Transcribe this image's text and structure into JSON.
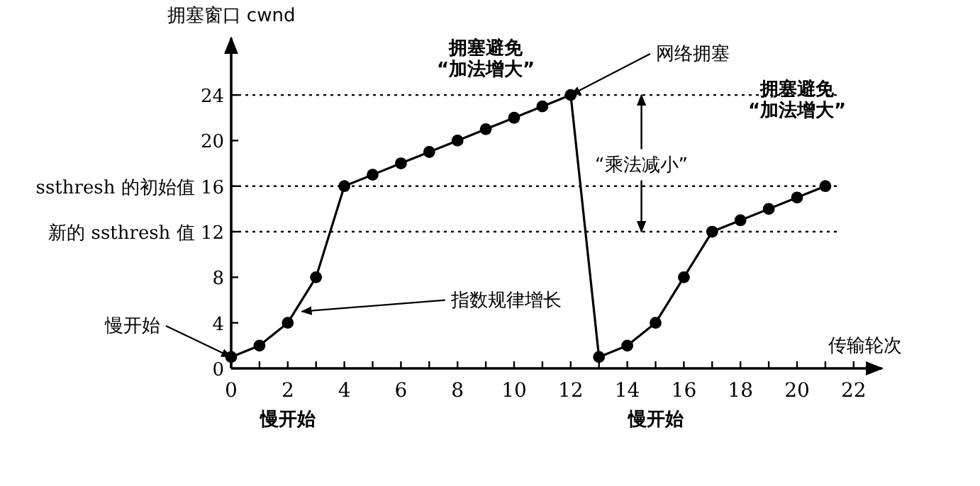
{
  "chart_data": {
    "type": "line",
    "xlabel": "传输轮次",
    "ylabel": "拥塞窗口 cwnd",
    "x": [
      0,
      1,
      2,
      3,
      4,
      5,
      6,
      7,
      8,
      9,
      10,
      11,
      12,
      13,
      14,
      15,
      16,
      17,
      18,
      19,
      20,
      21
    ],
    "series": [
      {
        "color": "#000000",
        "values": [
          1,
          2,
          4,
          8,
          16,
          17,
          18,
          19,
          20,
          21,
          22,
          23,
          24,
          1,
          2,
          4,
          8,
          12,
          13,
          14,
          15,
          16
        ]
      }
    ],
    "marker": "circle",
    "line_style": "solid",
    "grid": false,
    "legend": false,
    "xlim": [
      0,
      23
    ],
    "ylim": [
      0,
      29
    ],
    "xticks": [
      0,
      {
        "value": 1,
        "label": null
      },
      2,
      {
        "value": 3,
        "label": null
      },
      4,
      {
        "value": 5,
        "label": null
      },
      6,
      {
        "value": 7,
        "label": null
      },
      8,
      {
        "value": 9,
        "label": null
      },
      10,
      {
        "value": 11,
        "label": null
      },
      12,
      {
        "value": 13,
        "label": null
      },
      14,
      {
        "value": 15,
        "label": null
      },
      16,
      {
        "value": 17,
        "label": null
      },
      18,
      {
        "value": 19,
        "label": null
      },
      20,
      {
        "value": 21,
        "label": null
      },
      22
    ],
    "yticks": [
      0,
      4,
      8,
      {
        "value": 12,
        "label": "新的 ssthresh 值 12"
      },
      {
        "value": 16,
        "label": "ssthresh 的初始值 16"
      },
      20,
      24
    ],
    "ref_lines": [
      {
        "axis": "y",
        "value": 24,
        "line_style": "dotted"
      },
      {
        "axis": "y",
        "value": 16,
        "line_style": "dotted"
      },
      {
        "axis": "y",
        "value": 12,
        "line_style": "dotted"
      }
    ],
    "annotations": [
      {
        "text": "慢开始",
        "x": 0,
        "y": 1
      },
      {
        "text": "指数规律增长",
        "x": 2.5,
        "y": 5
      },
      {
        "text": "网络拥塞",
        "x": 12,
        "y": 24
      },
      "拥塞避免\n“加法增大”",
      {
        "text": "“乘法减小”",
        "x": 14.5,
        "y": 24
      },
      "拥塞避免\n“加法增大”",
      "慢开始",
      "慢开始"
    ]
  }
}
